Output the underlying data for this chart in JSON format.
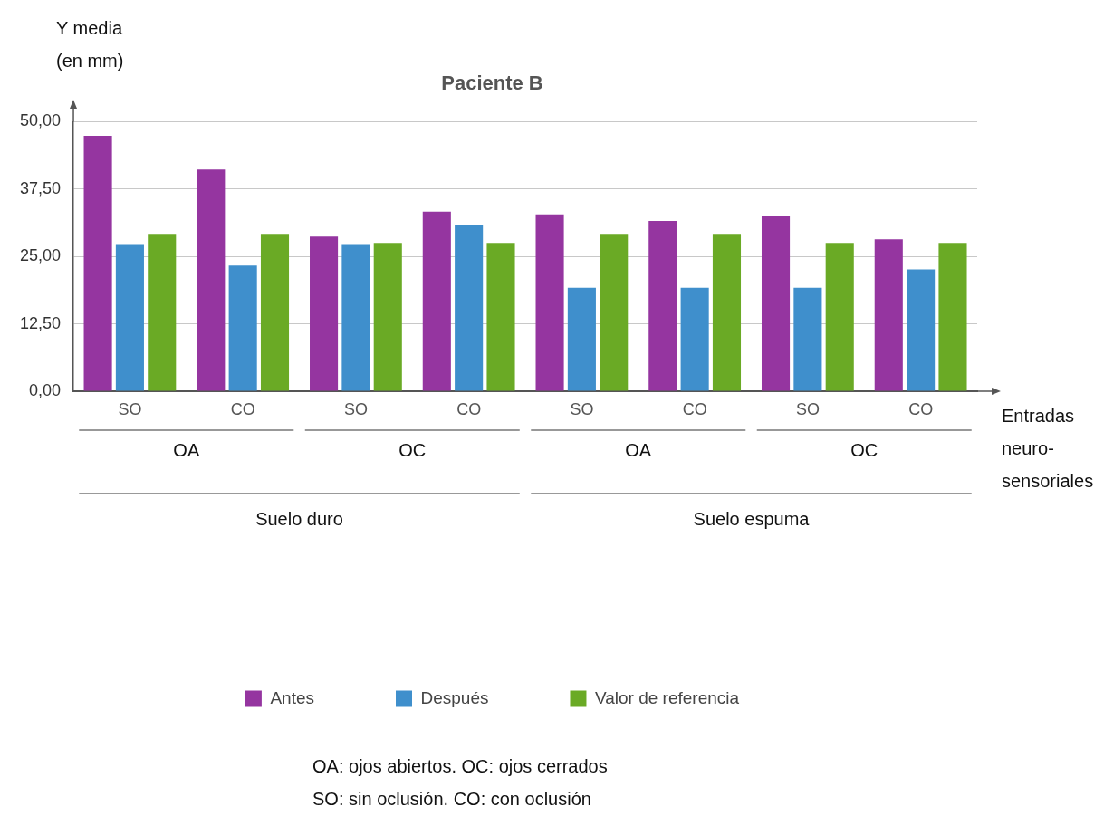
{
  "chart_data": {
    "type": "bar",
    "title": "Paciente B",
    "ylabel": "Y media\n(en mm)",
    "xlabel": "Entradas\nneuro-\nsensoriales",
    "categories": [
      "SO",
      "CO",
      "SO",
      "CO",
      "SO",
      "CO",
      "SO",
      "CO"
    ],
    "series": [
      {
        "name": "Antes",
        "color": "#9535a0",
        "values": [
          47.4,
          41.1,
          28.7,
          33.3,
          32.8,
          31.6,
          32.5,
          28.2
        ]
      },
      {
        "name": "Después",
        "color": "#3f8fcc",
        "values": [
          27.3,
          23.3,
          27.3,
          30.9,
          19.2,
          19.2,
          19.2,
          22.6
        ]
      },
      {
        "name": "Valor de referencia",
        "color": "#6aaa25",
        "values": [
          29.2,
          29.2,
          27.5,
          27.5,
          29.2,
          29.2,
          27.5,
          27.5
        ]
      }
    ],
    "ylim": [
      0,
      50
    ],
    "yticks": [
      {
        "value": 0,
        "label": "0,00"
      },
      {
        "value": 12.5,
        "label": "12,50"
      },
      {
        "value": 25,
        "label": "25,00"
      },
      {
        "value": 37.5,
        "label": "37,50"
      },
      {
        "value": 50,
        "label": "50,00"
      }
    ],
    "grid": "y",
    "legend": "bottom",
    "annotations": [
      "OA",
      "OC",
      "OA",
      "OC",
      "Suelo duro",
      "Suelo espuma",
      "OA: ojos abiertos. OC: ojos cerrados",
      "SO: sin oclusión. CO: con oclusión"
    ]
  }
}
